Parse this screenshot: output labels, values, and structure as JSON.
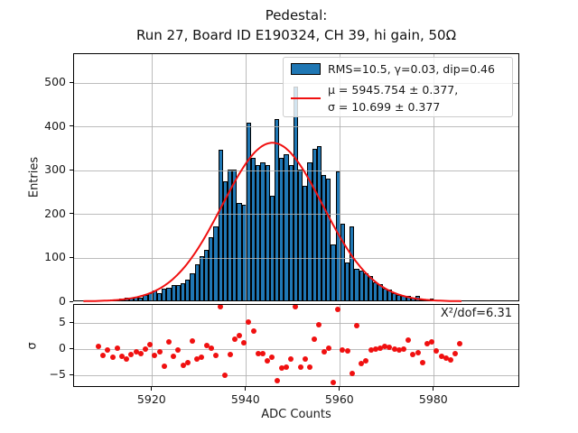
{
  "figure": {
    "title_line1": "Pedestal:",
    "title_line2": "Run 27, Board ID E190324, CH 39, hi gain, 50Ω"
  },
  "legend": {
    "hist_entry": "RMS=10.5, γ=0.03, dip=0.46",
    "fit_entry_line1": "μ = 5945.754 ± 0.377,",
    "fit_entry_line2": "σ = 10.699 ± 0.377"
  },
  "annotation": {
    "chi2": "X²/dof=6.31"
  },
  "colors": {
    "bar_fill": "#1f77b4",
    "bar_edge": "#000000",
    "fit_curve": "#f01010",
    "residual_dot": "#f01010",
    "grid": "#b0b0b0",
    "legend_bg": "rgba(255,255,255,0.8)"
  },
  "axis": {
    "xlabel": "ADC Counts",
    "ylabel_main": "Entries",
    "ylabel_res": "σ",
    "xtick_labels": [
      "5920",
      "5940",
      "5960",
      "5980"
    ],
    "ytick_labels_main": [
      "0",
      "100",
      "200",
      "300",
      "400",
      "500"
    ],
    "ytick_labels_res": [
      "5",
      "0",
      "−5"
    ]
  },
  "chart_data": [
    {
      "type": "bar",
      "title": "Pedestal: Run 27, Board ID E190324, CH 39, hi gain, 50Ω",
      "ylabel": "Entries",
      "xlabel": "",
      "x_bin_start": 5904,
      "bin_width": 1,
      "xlim": [
        5903.3,
        5998.3
      ],
      "ylim": [
        0,
        566
      ],
      "xticks": [
        5920,
        5940,
        5960,
        5980
      ],
      "yticks": [
        0,
        100,
        200,
        300,
        400,
        500
      ],
      "grid": true,
      "legend_position": "upper right",
      "legend_entries": [
        "RMS=10.5, γ=0.03, dip=0.46",
        "μ = 5945.754 ± 0.377, σ = 10.699 ± 0.377"
      ],
      "values": [
        2,
        3,
        2,
        4,
        5,
        4,
        5,
        6,
        5,
        8,
        11,
        10,
        13,
        11,
        17,
        21,
        26,
        20,
        31,
        33,
        39,
        40,
        43,
        52,
        66,
        86,
        105,
        120,
        148,
        172,
        349,
        275,
        302,
        302,
        227,
        223,
        409,
        330,
        313,
        320,
        313,
        244,
        419,
        330,
        337,
        313,
        493,
        302,
        265,
        320,
        350,
        357,
        290,
        283,
        131,
        299,
        179,
        90,
        172,
        76,
        72,
        66,
        59,
        45,
        42,
        31,
        28,
        21,
        17,
        15,
        14,
        11,
        15,
        7,
        6,
        9,
        4,
        3,
        2,
        2,
        1,
        2
      ],
      "fit": {
        "type": "gaussian",
        "mu": 5945.754,
        "mu_err": 0.377,
        "sigma": 10.699,
        "sigma_err": 0.377,
        "amplitude": 362,
        "rms": 10.5,
        "gamma": 0.03,
        "dip": 0.46,
        "draw_range": [
          5905.5,
          5986
        ]
      }
    },
    {
      "type": "scatter",
      "ylabel": "σ",
      "xlabel": "ADC Counts",
      "x_bin_start": 5904,
      "bin_width": 1,
      "xlim": [
        5903.3,
        5998.3
      ],
      "ylim": [
        -7.4,
        8.5
      ],
      "xticks": [
        5920,
        5940,
        5960,
        5980
      ],
      "yticks": [
        5,
        0,
        -5
      ],
      "grid": true,
      "chi2_per_dof": 6.31,
      "sigma_values": [
        null,
        null,
        null,
        null,
        0.5,
        -1.2,
        -0.2,
        -1.6,
        0.2,
        -1.3,
        -1.9,
        -1.0,
        -0.4,
        -0.8,
        0.0,
        0.9,
        -1.2,
        -0.4,
        -3.2,
        1.5,
        -1.4,
        -0.2,
        -3.1,
        -2.6,
        1.6,
        -1.8,
        -1.5,
        0.8,
        0.2,
        -1.2,
        8.2,
        -5.0,
        -1.0,
        1.9,
        2.6,
        1.3,
        5.2,
        3.5,
        -0.9,
        -0.9,
        -2.2,
        -1.6,
        -6.0,
        -3.6,
        -3.5,
        -1.8,
        8.1,
        -3.4,
        -1.9,
        -3.4,
        1.9,
        4.7,
        -0.5,
        0.2,
        -6.4,
        7.7,
        -0.2,
        -0.3,
        -4.6,
        4.6,
        -2.8,
        -2.2,
        -0.2,
        0.0,
        0.2,
        0.5,
        0.35,
        0.1,
        -0.2,
        0.0,
        1.7,
        -1.0,
        -0.6,
        -2.5,
        1.0,
        1.4,
        -0.35,
        -1.3,
        -1.7,
        -2.1,
        -0.9,
        1.0
      ]
    }
  ]
}
